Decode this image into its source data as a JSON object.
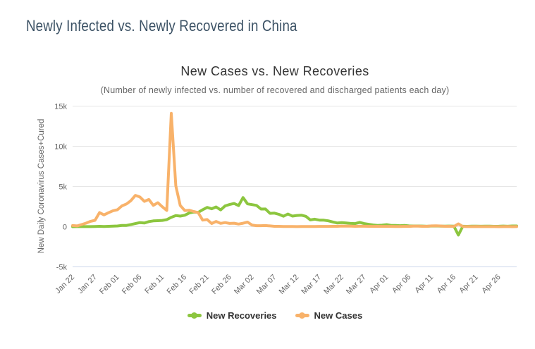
{
  "page": {
    "heading": "Newly Infected vs. Newly Recovered in China"
  },
  "chart_data": {
    "type": "line",
    "title": "New Cases vs. New Recoveries",
    "subtitle": "(Number of newly infected vs. number of recovered and discharged patients each day)",
    "xlabel": "",
    "ylabel": "New Daily Coronavirus Cases+Cured",
    "ylim": [
      -5000,
      15000
    ],
    "y_ticks": [
      {
        "value": 15000,
        "label": "15k"
      },
      {
        "value": 10000,
        "label": "10k"
      },
      {
        "value": 5000,
        "label": "5k"
      },
      {
        "value": 0,
        "label": "0"
      },
      {
        "value": -5000,
        "label": "-5k"
      }
    ],
    "grid": true,
    "legend_position": "bottom",
    "x_unit": "day",
    "x_range": [
      "Jan 22",
      "Apr 30"
    ],
    "x_tick_interval_days": 5,
    "x_tick_labels": [
      "Jan 22",
      "Jan 27",
      "Feb 01",
      "Feb 06",
      "Feb 11",
      "Feb 16",
      "Feb 21",
      "Feb 26",
      "Mar 02",
      "Mar 07",
      "Mar 12",
      "Mar 17",
      "Mar 22",
      "Mar 27",
      "Apr 01",
      "Apr 06",
      "Apr 11",
      "Apr 16",
      "Apr 21",
      "Apr 26"
    ],
    "series": [
      {
        "name": "New Recoveries",
        "color": "#8cc63f",
        "values": [
          0,
          6,
          8,
          11,
          12,
          22,
          43,
          21,
          47,
          72,
          85,
          147,
          157,
          262,
          387,
          510,
          459,
          632,
          716,
          744,
          781,
          877,
          1171,
          1373,
          1318,
          1425,
          1701,
          1824,
          1779,
          2109,
          2393,
          2230,
          2452,
          2088,
          2589,
          2750,
          2885,
          2623,
          3622,
          2837,
          2742,
          2652,
          2189,
          2198,
          1661,
          1681,
          1535,
          1297,
          1578,
          1318,
          1399,
          1430,
          1289,
          838,
          930,
          819,
          809,
          730,
          590,
          459,
          504,
          456,
          401,
          387,
          537,
          383,
          300,
          213,
          161,
          182,
          252,
          157,
          155,
          121,
          146,
          96,
          86,
          84,
          75,
          52,
          81,
          89,
          60,
          64,
          78,
          72,
          -1043,
          51,
          48,
          58,
          69,
          56,
          60,
          58,
          44,
          50,
          79,
          51,
          85,
          92
        ]
      },
      {
        "name": "New Cases",
        "color": "#f8b26a",
        "values": [
          140,
          97,
          259,
          441,
          665,
          787,
          1753,
          1466,
          1739,
          1984,
          2101,
          2590,
          2827,
          3233,
          3892,
          3697,
          3151,
          3387,
          2653,
          2984,
          2473,
          2015,
          14108,
          5090,
          2641,
          2008,
          2048,
          1886,
          1749,
          820,
          889,
          397,
          648,
          409,
          508,
          406,
          433,
          327,
          427,
          573,
          202,
          125,
          119,
          143,
          99,
          44,
          40,
          19,
          24,
          15,
          11,
          20,
          16,
          27,
          29,
          39,
          34,
          39,
          41,
          46,
          78,
          74,
          67,
          47,
          55,
          54,
          45,
          31,
          48,
          36,
          35,
          31,
          19,
          30,
          39,
          32,
          62,
          63,
          42,
          46,
          99,
          108,
          89,
          46,
          46,
          26,
          352,
          27,
          12,
          11,
          30,
          10,
          6,
          12,
          11,
          3,
          6,
          22,
          4,
          12
        ]
      }
    ],
    "axis_colors": {
      "grid": "#e6e6e6",
      "axis_line": "#ccd6eb",
      "tick_text": "#666666"
    }
  }
}
